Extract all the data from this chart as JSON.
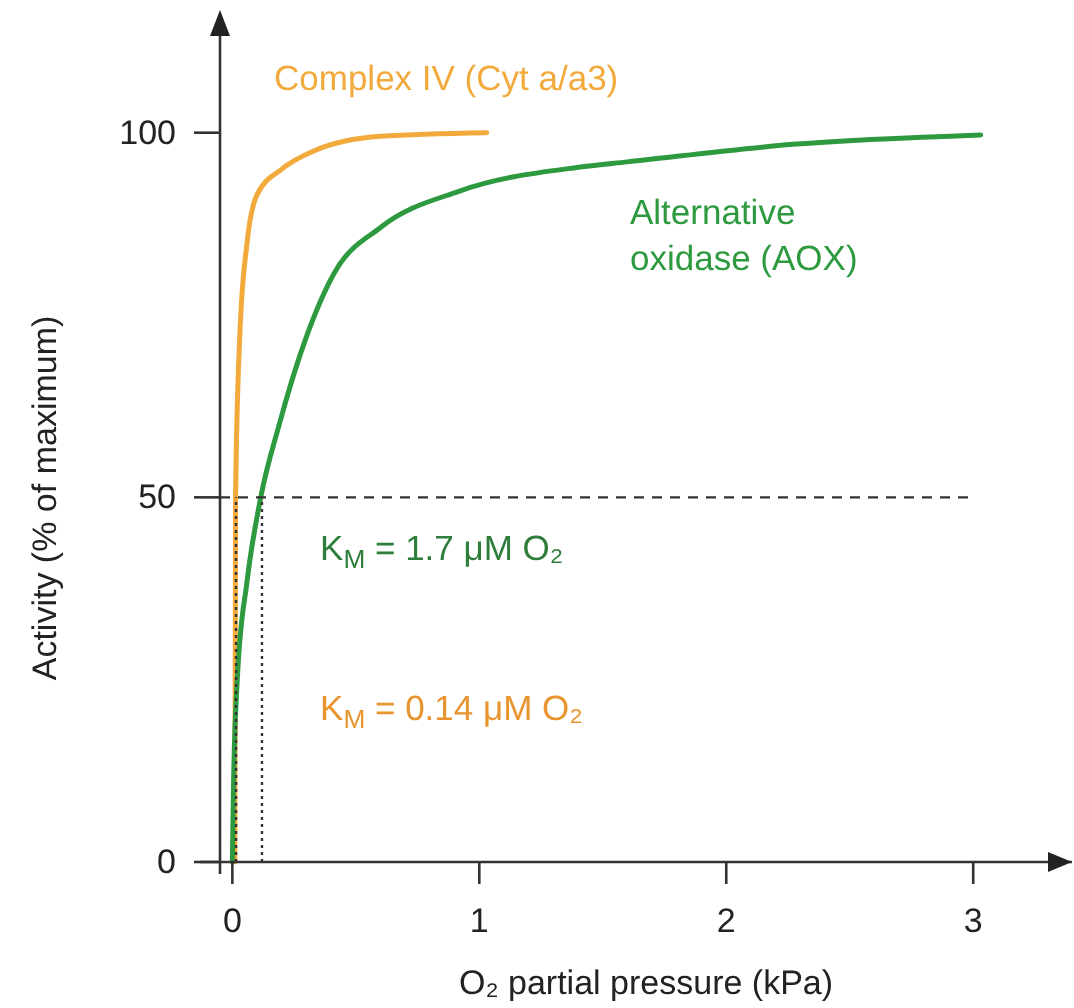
{
  "chart_data": {
    "type": "line",
    "xlabel": "O₂ partial pressure (kPa)",
    "ylabel": "Activity (% of maximum)",
    "xlim": [
      -0.05,
      3.4
    ],
    "ylim": [
      0,
      116
    ],
    "xticks": [
      0,
      1,
      2,
      3
    ],
    "yticks": [
      0,
      50,
      100
    ],
    "grid": false,
    "marker": "none",
    "series": [
      {
        "name": "Complex IV (Cyt a/a3)",
        "color": "#f2aa3c",
        "x": [
          0.01,
          0.013,
          0.03,
          0.06,
          0.1,
          0.2,
          0.33,
          0.6,
          1.03
        ],
        "values": [
          0,
          50,
          72,
          85,
          91.5,
          95,
          97.5,
          99.5,
          100
        ]
      },
      {
        "name": "Alternative oxidase (AOX)",
        "color": "#2e9a3f",
        "x": [
          0,
          0.005,
          0.02,
          0.06,
          0.115,
          0.19,
          0.275,
          0.41,
          0.6,
          0.92,
          1.41,
          1.6,
          2.27,
          3.03
        ],
        "values": [
          0,
          11,
          25,
          38.6,
          50,
          60,
          69.6,
          80.6,
          87,
          92,
          95.3,
          96,
          98.4,
          99.7
        ]
      },
      {
        "type": "line",
        "color": "#333333",
        "line_style": "dashed",
        "x": [
          -0.05,
          3.0
        ],
        "values": [
          50,
          50
        ]
      },
      {
        "type": "line",
        "color": "#333333",
        "line_style": "dotted",
        "x": [
          0.015,
          0.015
        ],
        "values": [
          0,
          50
        ]
      },
      {
        "type": "line",
        "color": "#333333",
        "line_style": "dotted",
        "x": [
          0.12,
          0.12
        ],
        "values": [
          0,
          50
        ]
      }
    ],
    "annotations": [
      "K$_{M}$ = 1.7 μM O₂",
      "K$_{M}$ = 0.14 μM O₂"
    ]
  }
}
